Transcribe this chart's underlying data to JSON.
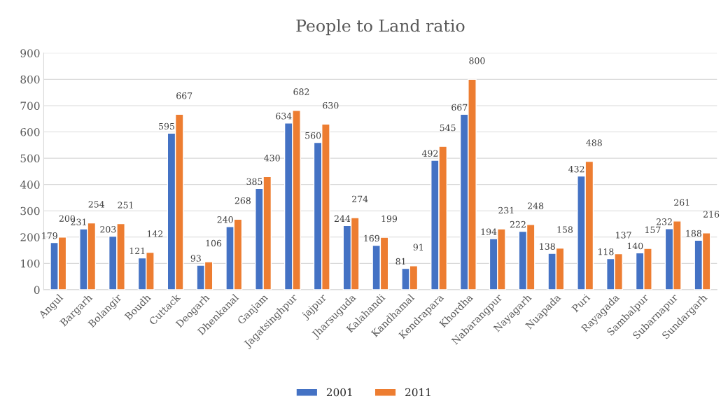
{
  "chart_data": {
    "type": "bar",
    "title": "People to Land ratio",
    "categories": [
      "Angul",
      "Bargarh",
      "Bolangir",
      "Boudh",
      "Cuttack",
      "Deogarh",
      "Dhenkanal",
      "Ganjam",
      "Jagatsinghpur",
      "jajpur",
      "Jharsuguda",
      "Kalahandi",
      "Kandhamal",
      "Kendrapara",
      "Khordha",
      "Nabarangpur",
      "Nayagarh",
      "Nuapada",
      "Puri",
      "Rayagada",
      "Sambalpur",
      "Subarnapur",
      "Sundargarh"
    ],
    "series": [
      {
        "name": "2001",
        "color": "#4472c4",
        "values": [
          179,
          231,
          203,
          121,
          595,
          93,
          240,
          385,
          634,
          560,
          244,
          169,
          81,
          492,
          667,
          194,
          222,
          138,
          432,
          118,
          140,
          232,
          188
        ]
      },
      {
        "name": "2011",
        "color": "#ed7d31",
        "values": [
          200,
          254,
          251,
          142,
          667,
          106,
          268,
          430,
          682,
          630,
          274,
          199,
          91,
          545,
          800,
          231,
          248,
          158,
          488,
          137,
          157,
          261,
          216
        ]
      }
    ],
    "ylim": [
      0,
      900
    ],
    "yticks": [
      0,
      100,
      200,
      300,
      400,
      500,
      600,
      700,
      800,
      900
    ],
    "grid": "y",
    "legend": "bottom",
    "data_labels": true
  }
}
